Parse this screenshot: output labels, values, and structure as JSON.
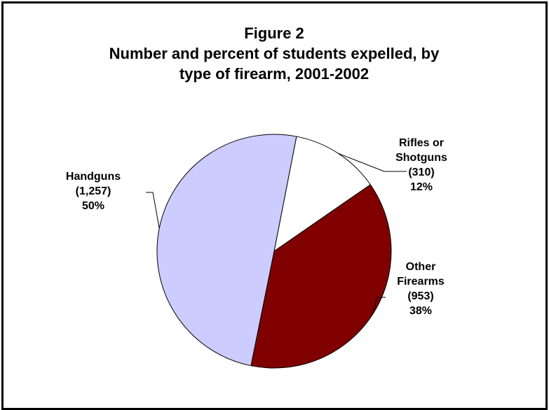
{
  "chart_data": {
    "type": "pie",
    "title_lines": [
      "Figure 2",
      "Number and percent of students expelled, by",
      "type of firearm, 2001-2002"
    ],
    "slices": [
      {
        "name": "Rifles or Shotguns",
        "label_lines": [
          "Rifles or",
          "Shotguns",
          "(310)",
          "12%"
        ],
        "value": 310,
        "percent": 12,
        "color": "#ffffff"
      },
      {
        "name": "Other Firearms",
        "label_lines": [
          "Other",
          "Firearms",
          "(953)",
          "38%"
        ],
        "value": 953,
        "percent": 38,
        "color": "#800000"
      },
      {
        "name": "Handguns",
        "label_lines": [
          "Handguns",
          "(1,257)",
          "50%"
        ],
        "value": 1257,
        "percent": 50,
        "color": "#ccccff"
      }
    ]
  }
}
